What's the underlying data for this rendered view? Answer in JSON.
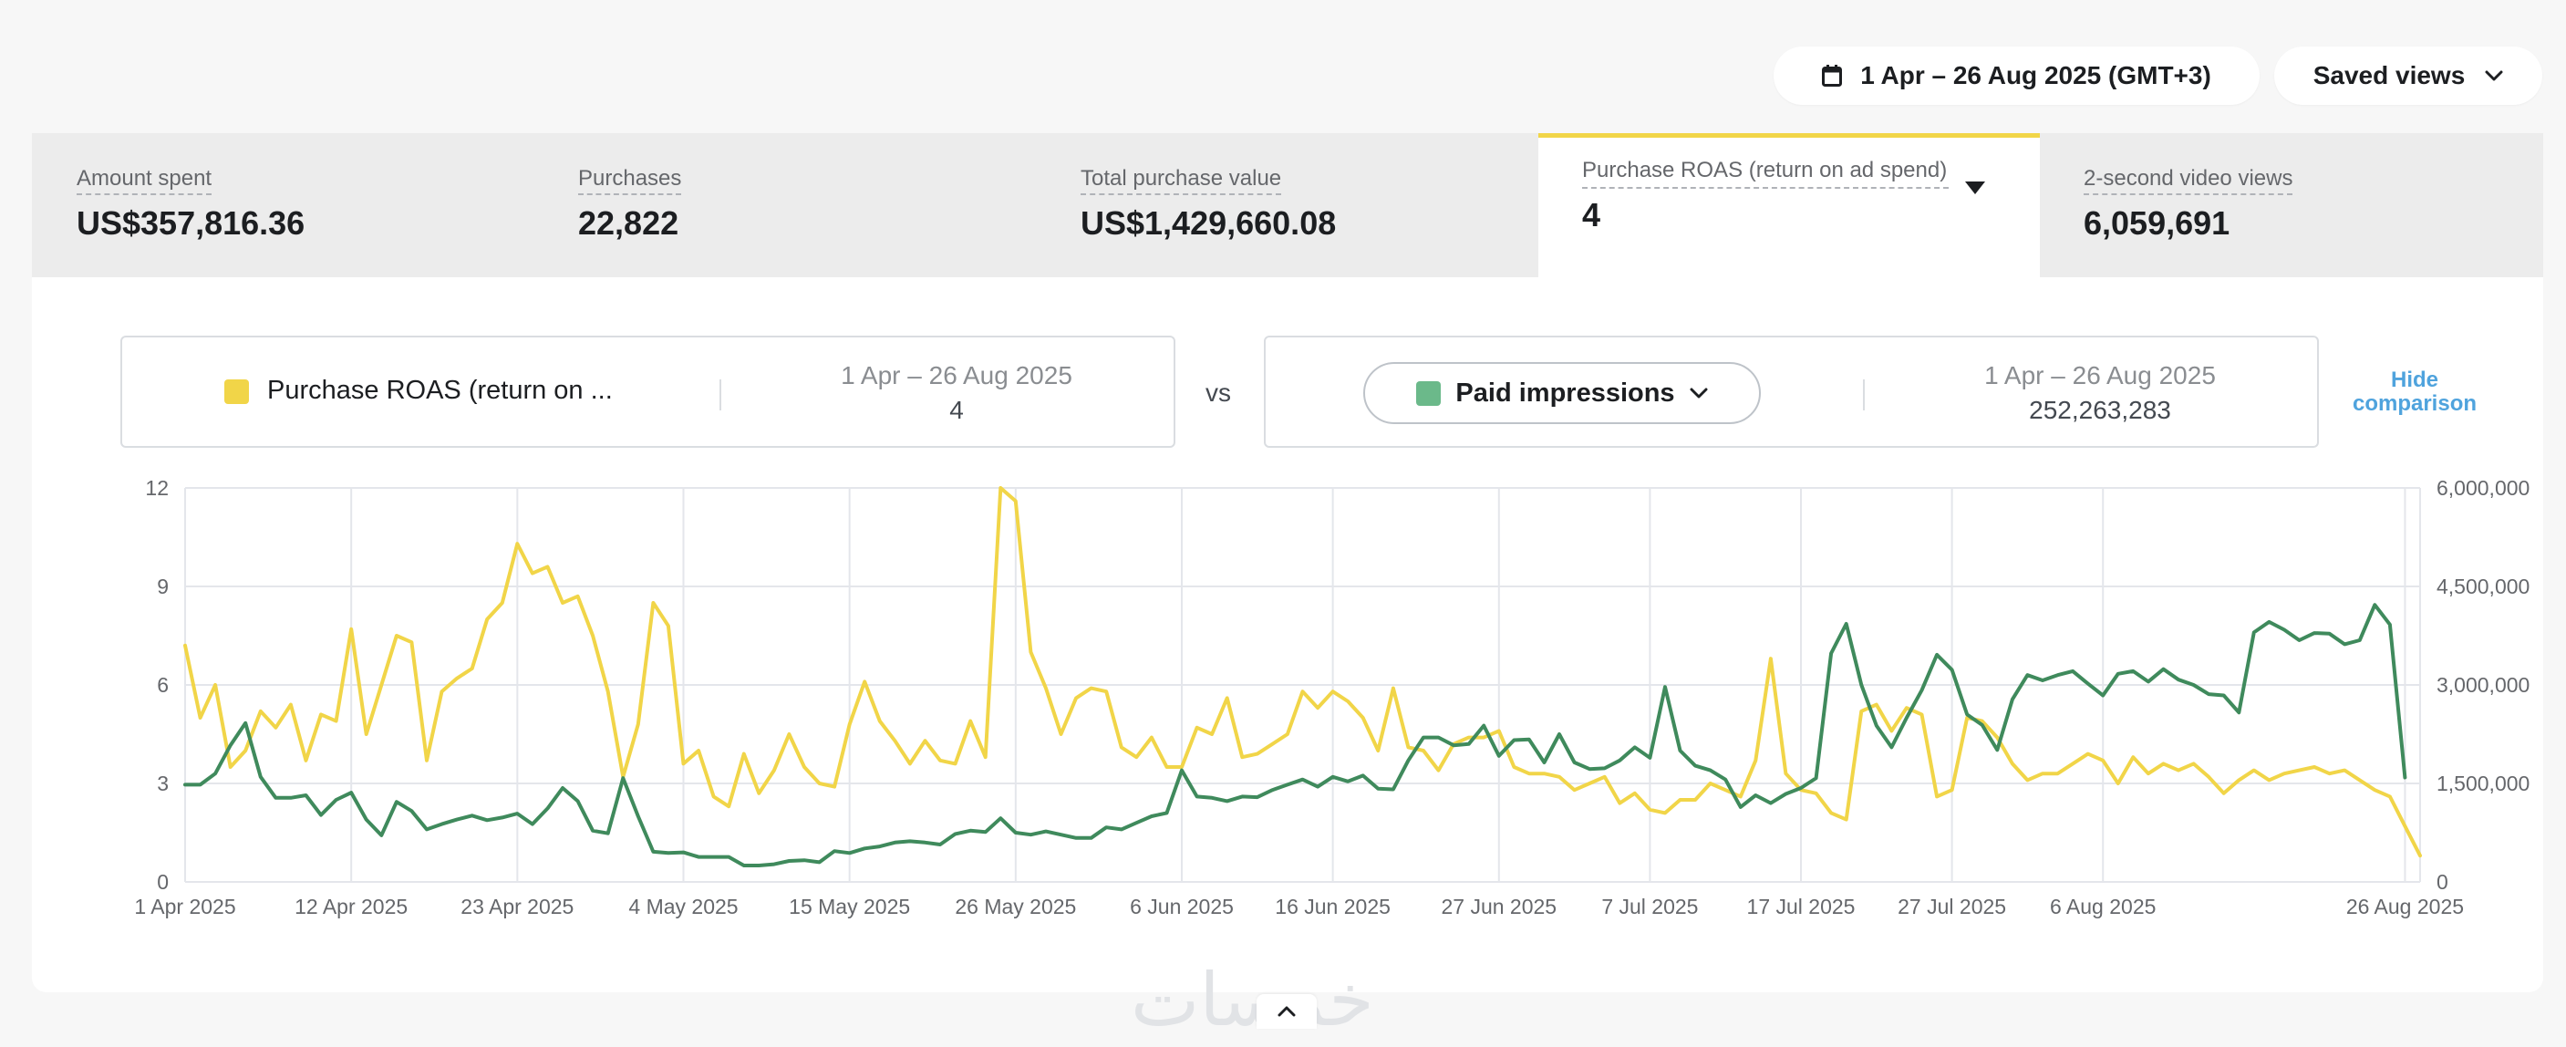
{
  "header": {
    "date_range_label": "1 Apr – 26 Aug 2025 (GMT+3)",
    "saved_views_label": "Saved views"
  },
  "metrics": [
    {
      "label": "Amount spent",
      "value": "US$357,816.36"
    },
    {
      "label": "Purchases",
      "value": "22,822"
    },
    {
      "label": "Total purchase value",
      "value": "US$1,429,660.08"
    },
    {
      "label": "Purchase ROAS (return on ad spend)",
      "value": "4",
      "active": true
    },
    {
      "label": "2-second video views",
      "value": "6,059,691"
    }
  ],
  "comparison": {
    "primary": {
      "name": "Purchase ROAS (return on ...",
      "date": "1 Apr – 26 Aug 2025",
      "value": "4",
      "color": "#f1d548"
    },
    "vs_label": "vs",
    "secondary": {
      "name": "Paid impressions",
      "date": "1 Apr – 26 Aug 2025",
      "value": "252,263,283",
      "color": "#6bb98a"
    },
    "hide_label_line1": "Hide",
    "hide_label_line2": "comparison"
  },
  "watermark": "خمسات",
  "chart_data": {
    "type": "line",
    "x_start": "2025-04-01",
    "x_ticks": [
      "1 Apr 2025",
      "12 Apr 2025",
      "23 Apr 2025",
      "4 May 2025",
      "15 May 2025",
      "26 May 2025",
      "6 Jun 2025",
      "16 Jun 2025",
      "27 Jun 2025",
      "7 Jul 2025",
      "17 Jul 2025",
      "27 Jul 2025",
      "6 Aug 2025",
      "26 Aug 2025"
    ],
    "y_left_ticks": [
      "0",
      "3",
      "6",
      "9",
      "12"
    ],
    "y_left_lim": [
      0,
      12
    ],
    "y_right_ticks": [
      "0",
      "1,500,000",
      "3,000,000",
      "4,500,000",
      "6,000,000"
    ],
    "y_right_lim": [
      0,
      6000000
    ],
    "grid": true,
    "series": [
      {
        "name": "Purchase ROAS (return on ad spend)",
        "axis": "left",
        "color": "#f1d548",
        "values": [
          7.2,
          5.0,
          6.0,
          3.5,
          4.0,
          5.2,
          4.7,
          5.4,
          3.7,
          5.1,
          4.9,
          7.7,
          4.5,
          6.0,
          7.5,
          7.3,
          3.7,
          5.8,
          6.2,
          6.5,
          8.0,
          8.5,
          10.3,
          9.4,
          9.6,
          8.5,
          8.7,
          7.5,
          5.8,
          3.2,
          4.8,
          8.5,
          7.8,
          3.6,
          4.0,
          2.6,
          2.3,
          3.9,
          2.7,
          3.4,
          4.5,
          3.5,
          3.0,
          2.9,
          4.8,
          6.1,
          4.9,
          4.3,
          3.6,
          4.3,
          3.7,
          3.6,
          4.9,
          3.8,
          12.0,
          11.6,
          7.0,
          5.9,
          4.5,
          5.6,
          5.9,
          5.8,
          4.1,
          3.8,
          4.4,
          3.5,
          3.5,
          4.7,
          4.5,
          5.6,
          3.8,
          3.9,
          4.2,
          4.5,
          5.8,
          5.3,
          5.8,
          5.5,
          5.0,
          4.0,
          5.9,
          4.1,
          4.0,
          3.4,
          4.2,
          4.4,
          4.4,
          4.6,
          3.5,
          3.3,
          3.3,
          3.2,
          2.8,
          3.0,
          3.2,
          2.4,
          2.7,
          2.2,
          2.1,
          2.5,
          2.5,
          3.0,
          2.8,
          2.6,
          3.7,
          6.8,
          3.3,
          2.8,
          2.7,
          2.1,
          1.9,
          5.2,
          5.4,
          4.6,
          5.3,
          5.1,
          2.6,
          2.8,
          5.0,
          4.9,
          4.4,
          3.6,
          3.1,
          3.3,
          3.3,
          3.6,
          3.9,
          3.7,
          3.0,
          3.8,
          3.3,
          3.6,
          3.4,
          3.6,
          3.2,
          2.7,
          3.1,
          3.4,
          3.1,
          3.3,
          3.4,
          3.5,
          3.3,
          3.4,
          3.1,
          2.8,
          2.6,
          1.7,
          0.8
        ]
      },
      {
        "name": "Paid impressions",
        "axis": "right",
        "color": "#3f8a5c",
        "values": [
          1480000,
          1480000,
          1650000,
          2080000,
          2420000,
          1600000,
          1280000,
          1280000,
          1320000,
          1020000,
          1250000,
          1360000,
          950000,
          710000,
          1220000,
          1080000,
          800000,
          880000,
          950000,
          1010000,
          940000,
          980000,
          1040000,
          880000,
          1120000,
          1430000,
          1230000,
          780000,
          740000,
          1580000,
          1000000,
          460000,
          440000,
          450000,
          380000,
          380000,
          380000,
          250000,
          250000,
          270000,
          320000,
          330000,
          300000,
          470000,
          440000,
          510000,
          540000,
          600000,
          620000,
          600000,
          570000,
          730000,
          780000,
          760000,
          970000,
          750000,
          720000,
          770000,
          720000,
          670000,
          670000,
          830000,
          800000,
          900000,
          1000000,
          1050000,
          1700000,
          1300000,
          1280000,
          1230000,
          1300000,
          1290000,
          1400000,
          1480000,
          1560000,
          1450000,
          1600000,
          1530000,
          1620000,
          1420000,
          1410000,
          1850000,
          2200000,
          2200000,
          2080000,
          2100000,
          2380000,
          1920000,
          2160000,
          2170000,
          1820000,
          2250000,
          1820000,
          1720000,
          1730000,
          1850000,
          2050000,
          1890000,
          2970000,
          2000000,
          1770000,
          1700000,
          1560000,
          1140000,
          1320000,
          1200000,
          1340000,
          1430000,
          1580000,
          3480000,
          3930000,
          3000000,
          2380000,
          2050000,
          2500000,
          2920000,
          3460000,
          3230000,
          2550000,
          2390000,
          2010000,
          2780000,
          3150000,
          3070000,
          3150000,
          3210000,
          3020000,
          2840000,
          3170000,
          3210000,
          3050000,
          3240000,
          3080000,
          3000000,
          2860000,
          2840000,
          2580000,
          3800000,
          3960000,
          3840000,
          3680000,
          3790000,
          3780000,
          3620000,
          3680000,
          4220000,
          3920000,
          1590000
        ]
      }
    ]
  }
}
